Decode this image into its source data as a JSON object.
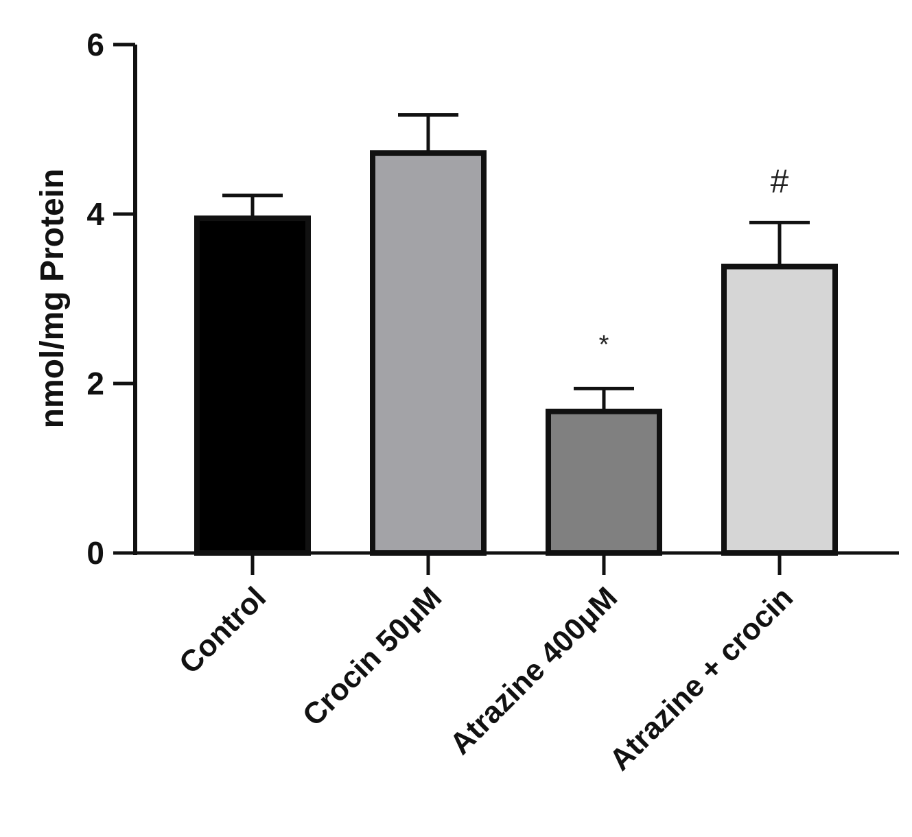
{
  "chart_data": {
    "type": "bar",
    "title": "",
    "xlabel": "",
    "ylabel": "nmol/mg Protein",
    "ylim": [
      0,
      6
    ],
    "yticks": [
      "0",
      "2",
      "4",
      "6"
    ],
    "categories": [
      "Control",
      "Crocin 50μM",
      "Atrazine 400μM",
      "Atrazine + crocin"
    ],
    "values": [
      3.95,
      4.72,
      1.67,
      3.38
    ],
    "errors": [
      0.27,
      0.45,
      0.27,
      0.52
    ],
    "annotations": [
      "",
      "",
      "*",
      "#"
    ],
    "colors": [
      "#000000",
      "#a3a3a7",
      "#808080",
      "#d6d6d6"
    ],
    "grid": false,
    "legend": "none"
  }
}
